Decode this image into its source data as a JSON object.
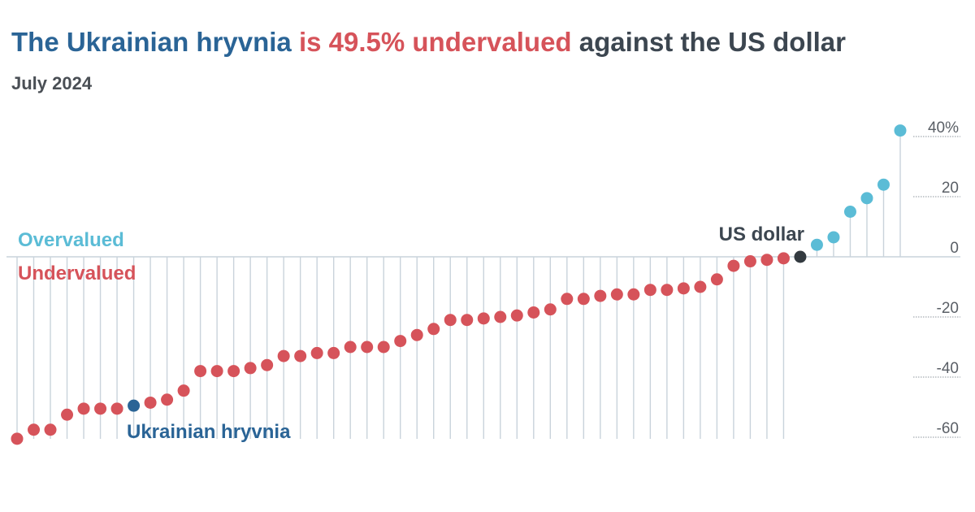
{
  "title": {
    "part1": "The Ukrainian hryvnia",
    "part2": "is 49.5% undervalued",
    "part3": "against the US dollar"
  },
  "subtitle": "July 2024",
  "colors": {
    "undervalued": "#d6535a",
    "overvalued": "#5bbcd6",
    "highlight_hryvnia": "#2a6496",
    "highlight_usd": "#333a40",
    "stem": "#c9d3db",
    "zero_line": "#c9d3db",
    "grid": "#8d959c"
  },
  "chart_data": {
    "type": "lollipop",
    "title": "The Ukrainian hryvnia is 49.5% undervalued against the US dollar",
    "subtitle": "July 2024",
    "ylabel": "",
    "ylim": [
      -62,
      44
    ],
    "y_ticks": [
      {
        "value": 40,
        "label": "40%"
      },
      {
        "value": 20,
        "label": "20"
      },
      {
        "value": 0,
        "label": "0"
      },
      {
        "value": -20,
        "label": "-20"
      },
      {
        "value": -40,
        "label": "-40"
      },
      {
        "value": -60,
        "label": "-60"
      }
    ],
    "region_labels": {
      "overvalued": "Overvalued",
      "undervalued": "Undervalued"
    },
    "annotations": {
      "hryvnia": "Ukrainian hryvnia",
      "usd": "US dollar"
    },
    "highlight_hryvnia_index": 7,
    "highlight_usd_index": 47,
    "values": [
      -60.5,
      -57.5,
      -57.5,
      -52.5,
      -50.5,
      -50.5,
      -50.5,
      -49.5,
      -48.5,
      -47.5,
      -44.5,
      -38,
      -38,
      -38,
      -37,
      -36,
      -33,
      -33,
      -32,
      -32,
      -30,
      -30,
      -30,
      -28,
      -26,
      -24,
      -21,
      -21,
      -20.5,
      -20,
      -19.5,
      -18.5,
      -17.5,
      -14,
      -14,
      -13,
      -12.5,
      -12.5,
      -11,
      -11,
      -10.5,
      -10,
      -7.5,
      -3,
      -1.5,
      -1,
      -0.5,
      0,
      4,
      6.5,
      15,
      19.5,
      24,
      42
    ]
  }
}
